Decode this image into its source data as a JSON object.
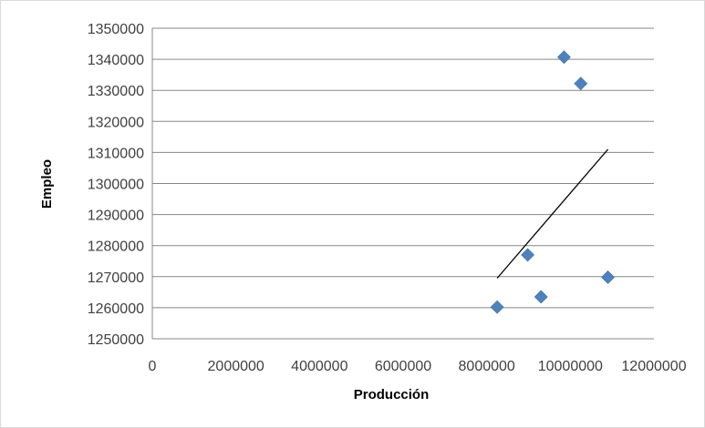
{
  "chart_data": {
    "type": "scatter",
    "xlabel": "Producción",
    "ylabel": "Empleo",
    "xlim": [
      0,
      12000000
    ],
    "ylim": [
      1250000,
      1350000
    ],
    "x_ticks": [
      0,
      2000000,
      4000000,
      6000000,
      8000000,
      10000000,
      12000000
    ],
    "y_ticks": [
      1250000,
      1260000,
      1270000,
      1280000,
      1290000,
      1300000,
      1310000,
      1320000,
      1330000,
      1340000,
      1350000
    ],
    "grid": "horizontal",
    "legend": "none",
    "series": [
      {
        "points": [
          {
            "x": 8250000,
            "y": 1260200
          },
          {
            "x": 8980000,
            "y": 1277000
          },
          {
            "x": 9300000,
            "y": 1263500
          },
          {
            "x": 9850000,
            "y": 1340700
          },
          {
            "x": 10250000,
            "y": 1332200
          },
          {
            "x": 10900000,
            "y": 1269800
          }
        ]
      }
    ],
    "trendline": {
      "x": [
        8250000,
        10900000
      ],
      "y": [
        1269500,
        1311000
      ]
    },
    "colors": {
      "marker": "#4f81bd",
      "trendline": "#000000",
      "grid": "#878787"
    }
  }
}
